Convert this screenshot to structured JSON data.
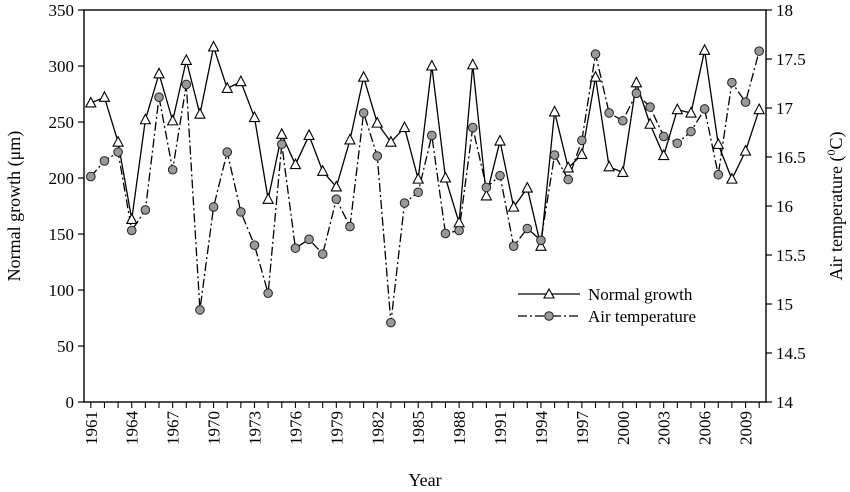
{
  "chart_data": {
    "type": "line",
    "title": "",
    "xlabel": "Year",
    "ylabel": "Normal growth (μm)",
    "y2label_text": "Air temperature (",
    "y2label_sup": "0",
    "y2label_unit": "C)",
    "x": [
      1961,
      1962,
      1963,
      1964,
      1965,
      1966,
      1967,
      1968,
      1969,
      1970,
      1971,
      1972,
      1973,
      1974,
      1975,
      1976,
      1977,
      1978,
      1979,
      1980,
      1981,
      1982,
      1983,
      1984,
      1985,
      1986,
      1987,
      1988,
      1989,
      1990,
      1991,
      1992,
      1993,
      1994,
      1995,
      1996,
      1997,
      1998,
      1999,
      2000,
      2001,
      2002,
      2003,
      2004,
      2005,
      2006,
      2007,
      2008,
      2009,
      2010
    ],
    "xlim": [
      1960.5,
      2010.5
    ],
    "xticks": [
      "1961",
      "1964",
      "1967",
      "1970",
      "1973",
      "1976",
      "1979",
      "1982",
      "1985",
      "1988",
      "1991",
      "1994",
      "1997",
      "2000",
      "2003",
      "2006",
      "2009"
    ],
    "ylim": [
      0,
      350
    ],
    "yticks": [
      "0",
      "50",
      "100",
      "150",
      "200",
      "250",
      "300",
      "350"
    ],
    "y2lim": [
      14,
      18
    ],
    "y2ticks": [
      "14",
      "14.5",
      "15",
      "15.5",
      "16",
      "16.5",
      "17",
      "17.5",
      "18"
    ],
    "grid": false,
    "legend_position": "center-right",
    "series": [
      {
        "name": "Normal growth",
        "axis": "left",
        "marker": "triangle",
        "line_style": "solid",
        "values": [
          267,
          272,
          232,
          163,
          252,
          293,
          251,
          305,
          257,
          317,
          280,
          286,
          254,
          181,
          239,
          212,
          238,
          206,
          192,
          234,
          290,
          249,
          232,
          245,
          199,
          300,
          200,
          160,
          301,
          184,
          233,
          174,
          191,
          139,
          259,
          209,
          221,
          290,
          210,
          205,
          285,
          248,
          220,
          261,
          258,
          314,
          230,
          199,
          224,
          261
        ]
      },
      {
        "name": "Air temperature",
        "axis": "right",
        "marker": "circle",
        "line_style": "dash-dot",
        "values": [
          16.3,
          16.46,
          16.55,
          15.75,
          15.96,
          17.11,
          16.37,
          17.24,
          14.94,
          15.99,
          16.55,
          15.94,
          15.6,
          15.11,
          16.63,
          15.57,
          15.66,
          15.51,
          16.07,
          15.79,
          16.95,
          16.51,
          14.81,
          16.03,
          16.14,
          16.72,
          15.72,
          15.75,
          16.8,
          16.19,
          16.31,
          15.59,
          15.77,
          15.65,
          16.52,
          16.27,
          16.67,
          17.55,
          16.95,
          16.87,
          17.15,
          17.01,
          16.71,
          16.64,
          16.76,
          16.99,
          16.32,
          17.26,
          17.06,
          17.58
        ]
      }
    ]
  }
}
